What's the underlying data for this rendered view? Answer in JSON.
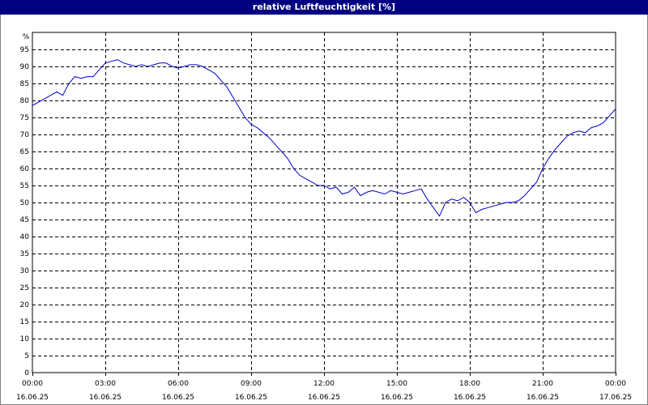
{
  "window": {
    "title": "relative Luftfeuchtigkeit [%]"
  },
  "colors": {
    "titlebar": "#000080",
    "series": "#0000cc",
    "grid": "#000000"
  },
  "chart_data": {
    "type": "line",
    "title": "relative Luftfeuchtigkeit [%]",
    "ylabel": "%",
    "xlabel": "",
    "ylim": [
      0,
      95
    ],
    "xlim_hours": [
      0,
      24
    ],
    "grid": true,
    "grid_style": "dashed",
    "y_ticks": [
      0,
      5,
      10,
      15,
      20,
      25,
      30,
      35,
      40,
      45,
      50,
      55,
      60,
      65,
      70,
      75,
      80,
      85,
      90,
      95
    ],
    "x_ticks": [
      {
        "time": "00:00",
        "date": "16.06.25"
      },
      {
        "time": "03:00",
        "date": "16.06.25"
      },
      {
        "time": "06:00",
        "date": "16.06.25"
      },
      {
        "time": "09:00",
        "date": "16.06.25"
      },
      {
        "time": "12:00",
        "date": "16.06.25"
      },
      {
        "time": "15:00",
        "date": "16.06.25"
      },
      {
        "time": "18:00",
        "date": "16.06.25"
      },
      {
        "time": "21:00",
        "date": "16.06.25"
      },
      {
        "time": "00:00",
        "date": "17.06.25"
      }
    ],
    "series": [
      {
        "color": "#0000cc",
        "x": [
          0.0,
          0.25,
          0.5,
          0.75,
          1.0,
          1.25,
          1.5,
          1.75,
          2.0,
          2.25,
          2.5,
          2.75,
          3.0,
          3.25,
          3.5,
          3.75,
          4.0,
          4.25,
          4.5,
          4.75,
          5.0,
          5.25,
          5.5,
          5.75,
          6.0,
          6.25,
          6.5,
          6.75,
          7.0,
          7.25,
          7.5,
          7.75,
          8.0,
          8.25,
          8.5,
          8.75,
          9.0,
          9.25,
          9.5,
          9.75,
          10.0,
          10.25,
          10.5,
          10.75,
          11.0,
          11.25,
          11.5,
          11.75,
          12.0,
          12.25,
          12.5,
          12.75,
          13.0,
          13.25,
          13.5,
          13.75,
          14.0,
          14.25,
          14.5,
          14.75,
          15.0,
          15.25,
          15.5,
          15.75,
          16.0,
          16.25,
          16.5,
          16.75,
          17.0,
          17.25,
          17.5,
          17.75,
          18.0,
          18.25,
          18.5,
          18.75,
          19.0,
          19.25,
          19.5,
          19.75,
          20.0,
          20.25,
          20.5,
          20.75,
          21.0,
          21.25,
          21.5,
          21.75,
          22.0,
          22.25,
          22.5,
          22.75,
          23.0,
          23.25,
          23.5,
          23.75,
          24.0
        ],
        "values": [
          78.5,
          79.5,
          80.5,
          81.5,
          82.5,
          81.5,
          85.0,
          87.0,
          86.5,
          87.0,
          87.0,
          89.0,
          91.0,
          91.5,
          92.0,
          91.0,
          90.5,
          90.0,
          90.5,
          90.0,
          90.5,
          91.0,
          91.0,
          90.0,
          89.5,
          90.0,
          90.5,
          90.5,
          90.0,
          89.0,
          88.0,
          86.0,
          84.0,
          81.0,
          78.0,
          75.0,
          73.0,
          72.0,
          70.5,
          69.0,
          67.0,
          65.0,
          63.0,
          60.0,
          58.0,
          57.0,
          56.0,
          55.0,
          55.0,
          54.0,
          54.5,
          52.5,
          53.0,
          54.5,
          52.0,
          53.0,
          53.5,
          53.0,
          52.5,
          53.5,
          53.0,
          52.5,
          53.0,
          53.5,
          54.0,
          51.0,
          48.5,
          46.0,
          50.0,
          51.0,
          50.5,
          51.5,
          50.0,
          47.0,
          48.0,
          48.5,
          49.0,
          49.5,
          50.0,
          50.0,
          50.5,
          52.0,
          54.0,
          56.0,
          60.0,
          63.0,
          65.5,
          67.5,
          69.5,
          70.5,
          71.0,
          70.5,
          72.0,
          72.5,
          73.5,
          75.5,
          77.5
        ]
      }
    ]
  }
}
